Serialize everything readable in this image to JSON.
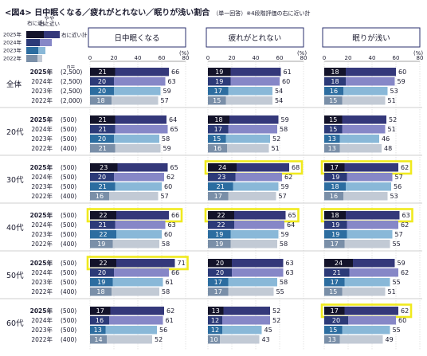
{
  "title": "<図4> 日中眠くなる／疲れがとれない／眠りが浅い割合",
  "subtitle": "（単一回答）※4段階評価の右に近い計",
  "legend": {
    "years": [
      "2025年",
      "2024年",
      "2023年",
      "2022年"
    ],
    "label_right_near": "右に近い",
    "label_somewhat_near": "やや右に近い",
    "label_total": "右に近い計"
  },
  "axis": {
    "ticks": [
      0,
      20,
      40,
      60,
      80
    ],
    "unit": "(%)",
    "n_label": "n="
  },
  "colors": {
    "2025年": {
      "dark": "#13132a",
      "light": "#34387a"
    },
    "2024年": {
      "dark": "#2c3a78",
      "light": "#8687c7"
    },
    "2023年": {
      "dark": "#2c6da0",
      "light": "#89b8d8"
    },
    "2022年": {
      "dark": "#7a8fa8",
      "light": "#c2cad5"
    },
    "highlight": "#f0ea1e"
  },
  "chart_data": {
    "type": "bar",
    "orientation": "horizontal",
    "stacked": true,
    "xlim": [
      0,
      80
    ],
    "panels": [
      "日中眠くなる",
      "疲れがとれない",
      "眠りが浅い"
    ],
    "groups": [
      {
        "name": "全体",
        "rows": [
          {
            "year": "2025年",
            "n": "(2,500)",
            "values": [
              [
                21,
                66
              ],
              [
                19,
                61
              ],
              [
                18,
                60
              ]
            ]
          },
          {
            "year": "2024年",
            "n": "(2,500)",
            "values": [
              [
                20,
                63
              ],
              [
                19,
                60
              ],
              [
                18,
                59
              ]
            ]
          },
          {
            "year": "2023年",
            "n": "(2,500)",
            "values": [
              [
                20,
                59
              ],
              [
                17,
                54
              ],
              [
                16,
                53
              ]
            ]
          },
          {
            "year": "2022年",
            "n": "(2,000)",
            "values": [
              [
                18,
                57
              ],
              [
                15,
                54
              ],
              [
                15,
                51
              ]
            ]
          }
        ]
      },
      {
        "name": "20代",
        "rows": [
          {
            "year": "2025年",
            "n": "(500)",
            "values": [
              [
                21,
                64
              ],
              [
                18,
                59
              ],
              [
                15,
                52
              ]
            ]
          },
          {
            "year": "2024年",
            "n": "(500)",
            "values": [
              [
                21,
                65
              ],
              [
                17,
                58
              ],
              [
                15,
                51
              ]
            ]
          },
          {
            "year": "2023年",
            "n": "(500)",
            "values": [
              [
                20,
                58
              ],
              [
                15,
                52
              ],
              [
                13,
                46
              ]
            ]
          },
          {
            "year": "2022年",
            "n": "(400)",
            "values": [
              [
                21,
                59
              ],
              [
                16,
                51
              ],
              [
                13,
                48
              ]
            ]
          }
        ]
      },
      {
        "name": "30代",
        "rows": [
          {
            "year": "2025年",
            "n": "(500)",
            "values": [
              [
                23,
                65
              ],
              [
                24,
                68
              ],
              [
                17,
                62
              ]
            ]
          },
          {
            "year": "2024年",
            "n": "(500)",
            "values": [
              [
                20,
                62
              ],
              [
                23,
                62
              ],
              [
                19,
                57
              ]
            ]
          },
          {
            "year": "2023年",
            "n": "(500)",
            "values": [
              [
                21,
                60
              ],
              [
                21,
                59
              ],
              [
                18,
                56
              ]
            ]
          },
          {
            "year": "2022年",
            "n": "(400)",
            "values": [
              [
                16,
                57
              ],
              [
                17,
                57
              ],
              [
                16,
                53
              ]
            ]
          }
        ]
      },
      {
        "name": "40代",
        "rows": [
          {
            "year": "2025年",
            "n": "(500)",
            "values": [
              [
                22,
                66
              ],
              [
                22,
                65
              ],
              [
                18,
                63
              ]
            ]
          },
          {
            "year": "2024年",
            "n": "(500)",
            "values": [
              [
                21,
                63
              ],
              [
                22,
                64
              ],
              [
                19,
                62
              ]
            ]
          },
          {
            "year": "2023年",
            "n": "(500)",
            "values": [
              [
                22,
                60
              ],
              [
                19,
                59
              ],
              [
                19,
                57
              ]
            ]
          },
          {
            "year": "2022年",
            "n": "(400)",
            "values": [
              [
                19,
                58
              ],
              [
                19,
                58
              ],
              [
                17,
                55
              ]
            ]
          }
        ]
      },
      {
        "name": "50代",
        "rows": [
          {
            "year": "2025年",
            "n": "(500)",
            "values": [
              [
                22,
                71
              ],
              [
                20,
                63
              ],
              [
                24,
                59
              ]
            ]
          },
          {
            "year": "2024年",
            "n": "(500)",
            "values": [
              [
                20,
                66
              ],
              [
                20,
                63
              ],
              [
                21,
                62
              ]
            ]
          },
          {
            "year": "2023年",
            "n": "(500)",
            "values": [
              [
                19,
                61
              ],
              [
                17,
                58
              ],
              [
                17,
                55
              ]
            ]
          },
          {
            "year": "2022年",
            "n": "(400)",
            "values": [
              [
                18,
                58
              ],
              [
                17,
                55
              ],
              [
                15,
                51
              ]
            ]
          }
        ]
      },
      {
        "name": "60代",
        "rows": [
          {
            "year": "2025年",
            "n": "(500)",
            "values": [
              [
                17,
                62
              ],
              [
                13,
                52
              ],
              [
                17,
                62
              ]
            ]
          },
          {
            "year": "2024年",
            "n": "(500)",
            "values": [
              [
                16,
                61
              ],
              [
                12,
                52
              ],
              [
                20,
                60
              ]
            ]
          },
          {
            "year": "2023年",
            "n": "(500)",
            "values": [
              [
                13,
                56
              ],
              [
                12,
                45
              ],
              [
                15,
                55
              ]
            ]
          },
          {
            "year": "2022年",
            "n": "(400)",
            "values": [
              [
                14,
                52
              ],
              [
                10,
                43
              ],
              [
                13,
                49
              ]
            ]
          }
        ]
      }
    ],
    "highlighted": [
      [
        2,
        0,
        1
      ],
      [
        2,
        0,
        2
      ],
      [
        3,
        0,
        0
      ],
      [
        3,
        0,
        1
      ],
      [
        3,
        0,
        2
      ],
      [
        4,
        0,
        0
      ],
      [
        5,
        0,
        2
      ]
    ]
  }
}
